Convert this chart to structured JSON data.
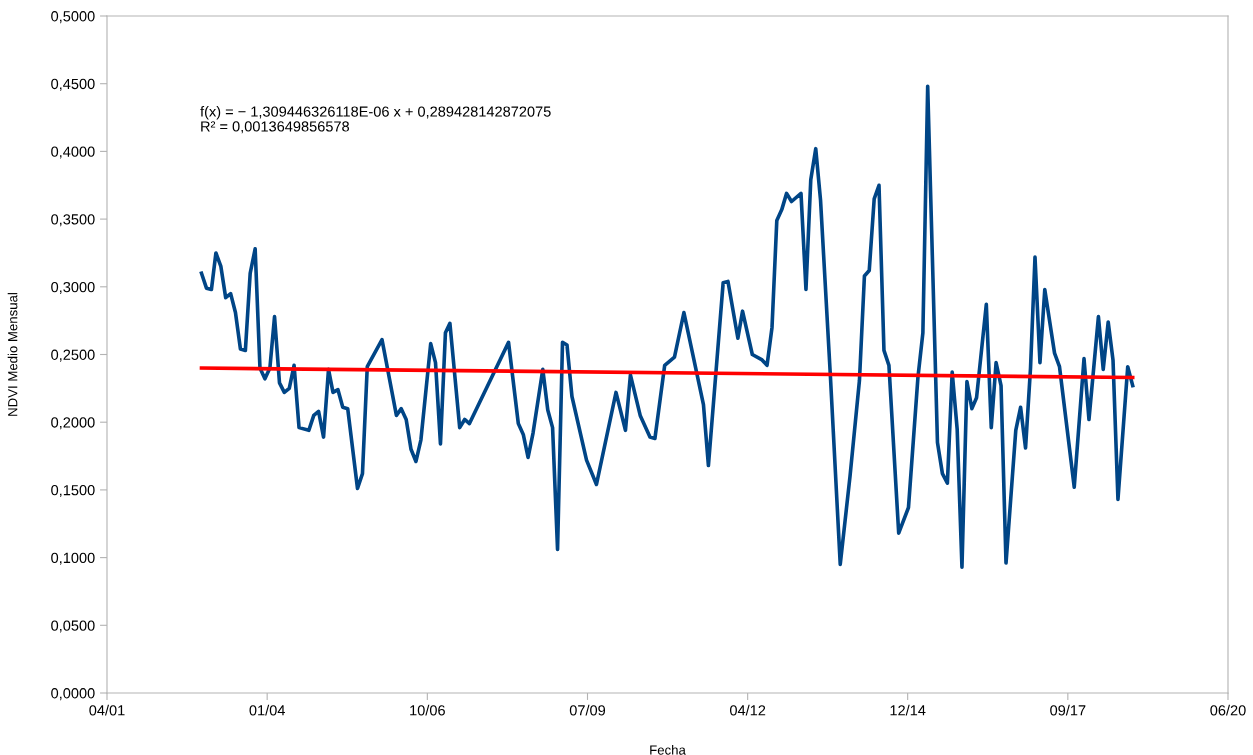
{
  "chart_data": {
    "type": "line",
    "xlabel": "Fecha",
    "ylabel": "NDVI Medio Mensual",
    "annotations": [
      "f(x) = − 1,309446326118E-06 x + 0,289428142872075",
      "R² = 0,0013649856578"
    ],
    "xlim": [
      "2001-04-20",
      "2020-06-18"
    ],
    "xticks": [
      {
        "value": "2001-04-20",
        "label": "04/01"
      },
      {
        "value": "2004-01-15",
        "label": "01/04"
      },
      {
        "value": "2006-10-11",
        "label": "10/06"
      },
      {
        "value": "2009-07-07",
        "label": "07/09"
      },
      {
        "value": "2012-04-02",
        "label": "04/12"
      },
      {
        "value": "2014-12-27",
        "label": "12/14"
      },
      {
        "value": "2017-09-22",
        "label": "09/17"
      },
      {
        "value": "2020-06-18",
        "label": "06/20"
      }
    ],
    "ylim": [
      0,
      0.5
    ],
    "yticks": [
      {
        "value": 0,
        "label": "0,0000"
      },
      {
        "value": 0.05,
        "label": "0,0500"
      },
      {
        "value": 0.1,
        "label": "0,1000"
      },
      {
        "value": 0.15,
        "label": "0,1500"
      },
      {
        "value": 0.2,
        "label": "0,2000"
      },
      {
        "value": 0.25,
        "label": "0,2500"
      },
      {
        "value": 0.3,
        "label": "0,3000"
      },
      {
        "value": 0.35,
        "label": "0,3500"
      },
      {
        "value": 0.4,
        "label": "0,4000"
      },
      {
        "value": 0.45,
        "label": "0,4500"
      },
      {
        "value": 0.5,
        "label": "0,5000"
      }
    ],
    "grid": false,
    "marker": "none",
    "line_style": "solid",
    "series": [
      {
        "color": "#004586",
        "x": [
          "2002-12",
          "2003-01",
          "2003-02",
          "2003-03",
          "2003-04",
          "2003-05",
          "2003-06",
          "2003-07",
          "2003-08",
          "2003-09",
          "2003-10",
          "2003-11",
          "2003-12",
          "2004-01",
          "2004-02",
          "2004-03",
          "2004-04",
          "2004-05",
          "2004-06",
          "2004-07",
          "2004-08",
          "2004-10",
          "2004-11",
          "2004-12",
          "2005-01",
          "2005-02",
          "2005-03",
          "2005-04",
          "2005-05",
          "2005-06",
          "2005-08",
          "2005-09",
          "2005-10",
          "2006-01",
          "2006-04",
          "2006-05",
          "2006-06",
          "2006-07",
          "2006-08",
          "2006-09",
          "2006-11",
          "2006-12",
          "2007-01",
          "2007-02",
          "2007-03",
          "2007-05",
          "2007-06",
          "2007-07",
          "2008-03",
          "2008-05",
          "2008-06",
          "2008-07",
          "2008-08",
          "2008-10",
          "2008-11",
          "2008-12",
          "2009-01",
          "2009-02",
          "2009-03",
          "2009-04",
          "2009-07",
          "2009-09",
          "2010-01",
          "2010-03",
          "2010-04",
          "2010-06",
          "2010-08",
          "2010-09",
          "2010-11",
          "2011-01",
          "2011-03",
          "2011-07",
          "2011-08",
          "2011-11",
          "2011-12",
          "2012-02",
          "2012-03",
          "2012-05",
          "2012-07",
          "2012-08",
          "2012-09",
          "2012-10",
          "2012-11",
          "2012-12",
          "2013-01",
          "2013-03",
          "2013-04",
          "2013-05",
          "2013-06",
          "2013-07",
          "2013-09",
          "2013-11",
          "2014-01",
          "2014-03",
          "2014-04",
          "2014-05",
          "2014-06",
          "2014-07",
          "2014-08",
          "2014-09",
          "2014-11",
          "2015-01",
          "2015-03",
          "2015-04",
          "2015-05",
          "2015-07",
          "2015-08",
          "2015-09",
          "2015-10",
          "2015-11",
          "2015-12",
          "2016-01",
          "2016-02",
          "2016-03",
          "2016-05",
          "2016-06",
          "2016-07",
          "2016-08",
          "2016-09",
          "2016-11",
          "2016-12",
          "2017-01",
          "2017-02",
          "2017-03",
          "2017-04",
          "2017-05",
          "2017-07",
          "2017-08",
          "2017-11",
          "2018-01",
          "2018-02",
          "2018-04",
          "2018-05",
          "2018-06",
          "2018-07",
          "2018-08",
          "2018-10",
          "2018-11"
        ],
        "values": [
          0.31,
          0.299,
          0.298,
          0.325,
          0.315,
          0.292,
          0.295,
          0.281,
          0.254,
          0.253,
          0.31,
          0.328,
          0.24,
          0.232,
          0.24,
          0.278,
          0.229,
          0.222,
          0.225,
          0.242,
          0.196,
          0.194,
          0.205,
          0.208,
          0.189,
          0.239,
          0.222,
          0.224,
          0.211,
          0.21,
          0.151,
          0.162,
          0.241,
          0.261,
          0.205,
          0.21,
          0.202,
          0.18,
          0.171,
          0.187,
          0.258,
          0.244,
          0.184,
          0.266,
          0.273,
          0.196,
          0.202,
          0.199,
          0.259,
          0.199,
          0.191,
          0.174,
          0.192,
          0.239,
          0.209,
          0.196,
          0.106,
          0.259,
          0.257,
          0.219,
          0.172,
          0.154,
          0.222,
          0.194,
          0.235,
          0.205,
          0.189,
          0.188,
          0.242,
          0.248,
          0.281,
          0.213,
          0.168,
          0.303,
          0.304,
          0.262,
          0.282,
          0.25,
          0.246,
          0.242,
          0.27,
          0.349,
          0.357,
          0.369,
          0.363,
          0.369,
          0.298,
          0.379,
          0.402,
          0.364,
          0.233,
          0.095,
          0.16,
          0.231,
          0.308,
          0.312,
          0.365,
          0.375,
          0.253,
          0.242,
          0.118,
          0.137,
          0.233,
          0.266,
          0.448,
          0.185,
          0.162,
          0.155,
          0.237,
          0.195,
          0.093,
          0.23,
          0.21,
          0.218,
          0.287,
          0.196,
          0.244,
          0.227,
          0.096,
          0.194,
          0.211,
          0.181,
          0.24,
          0.322,
          0.244,
          0.298,
          0.251,
          0.241,
          0.152,
          0.247,
          0.202,
          0.278,
          0.239,
          0.274,
          0.246,
          0.143,
          0.241,
          0.227
        ]
      },
      {
        "color": "#ff0000",
        "x": [
          "2002-12",
          "2018-11"
        ],
        "values": [
          0.24,
          0.233
        ]
      }
    ]
  }
}
